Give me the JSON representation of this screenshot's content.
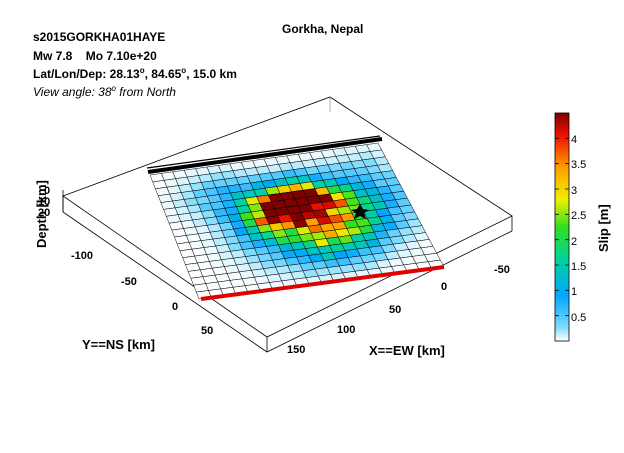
{
  "header": {
    "event_id": "s2015GORKHA01HAYE",
    "magnitude": "Mw 7.8",
    "moment": "Mo 7.10e+20",
    "location_prefix": "Lat/Lon/Dep: ",
    "lat": "28.13",
    "lon": "84.65",
    "depth_value": "15.0 km",
    "view_prefix": "View angle:  38",
    "view_suffix": " from North",
    "degree_symbol": "o"
  },
  "chart_data": {
    "type": "heatmap",
    "title": "Gorkha, Nepal",
    "xlabel": "X==EW [km]",
    "ylabel": "Y==NS [km]",
    "zlabel": "Depth [km]",
    "x_ticks": [
      "-50",
      "0",
      "50",
      "100",
      "150"
    ],
    "y_ticks": [
      "-100",
      "-50",
      "0",
      "50"
    ],
    "z_ticks": [
      "0",
      "10",
      "20"
    ],
    "colorbar": {
      "label": "Slip [m]",
      "range": [
        0,
        4.5
      ],
      "ticks": [
        "0.5",
        "1",
        "1.5",
        "2",
        "2.5",
        "3",
        "3.5",
        "4"
      ],
      "colormap": "jet"
    },
    "grid": {
      "cols": 20,
      "rows": 18
    },
    "fault_trace": "top edge (black)",
    "bottom_edge": "red",
    "hypocenter": "star",
    "hypocenter_cell": [
      6,
      7
    ],
    "slip_patches": [
      {
        "c": 11,
        "r": 6,
        "peak": 4.4,
        "sx": 2.4,
        "sy": 1.9
      },
      {
        "c": 9,
        "r": 7,
        "peak": 2.3,
        "sx": 1.7,
        "sy": 1.8
      },
      {
        "c": 14,
        "r": 9,
        "peak": 1.6,
        "sx": 2.6,
        "sy": 2.2
      },
      {
        "c": 10,
        "r": 11,
        "peak": 1.1,
        "sx": 3.0,
        "sy": 2.5
      },
      {
        "c": 7,
        "r": 8,
        "peak": 1.1,
        "sx": 1.8,
        "sy": 1.8
      },
      {
        "c": 12,
        "r": 12,
        "peak": 1.2,
        "sx": 2.2,
        "sy": 1.8
      },
      {
        "c": 5,
        "r": 4,
        "peak": 0.6,
        "sx": 2.2,
        "sy": 2.0
      },
      {
        "c": 17,
        "r": 5,
        "peak": 0.5,
        "sx": 2.0,
        "sy": 2.5
      }
    ]
  }
}
